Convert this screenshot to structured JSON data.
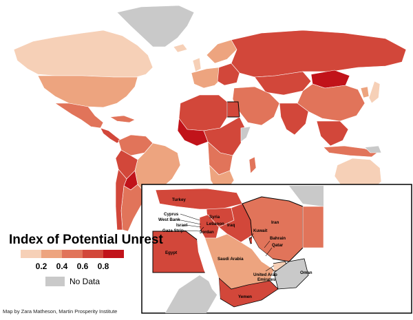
{
  "legend": {
    "title": "Index of Potential Unrest",
    "ticks": [
      "0.2",
      "0.4",
      "0.6",
      "0.8"
    ],
    "no_data_label": "No Data",
    "colors": [
      "#f6d0b7",
      "#eda47f",
      "#e1745a",
      "#d2473a",
      "#c1131a"
    ],
    "no_data_color": "#c9c9c9"
  },
  "credit": "Map by Zara Matheson, Martin Prosperity Institute",
  "inset": {
    "labels": {
      "turkey": "Turkey",
      "cyprus": "Cyprus",
      "west_bank": "West Bank",
      "israel": "Israel",
      "gaza_strip": "Gaza Strip",
      "syria": "Syria",
      "lebanon": "Lebanon",
      "jordan": "Jordan",
      "iraq": "Iraq",
      "iran": "Iran",
      "kuwait": "Kuwait",
      "bahrain": "Bahrain",
      "qatar": "Qatar",
      "saudi_arabia": "Saudi Arabia",
      "egypt": "Egypt",
      "uae_line1": "United Arab",
      "uae_line2": "Emirates",
      "oman": "Oman",
      "yemen": "Yemen"
    }
  }
}
